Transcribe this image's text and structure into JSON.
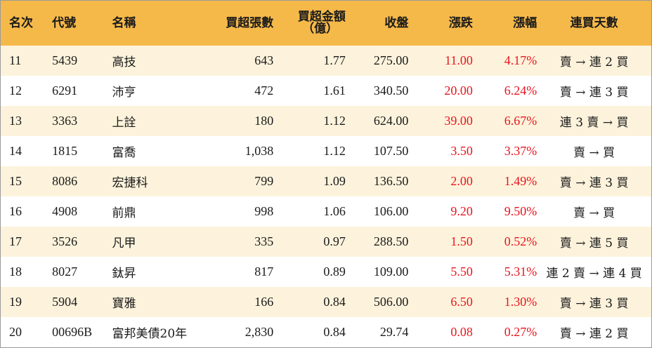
{
  "headers": {
    "rank": "名次",
    "code": "代號",
    "name": "名稱",
    "net_buy_shares": "買超張數",
    "net_buy_amount_line1": "買超金額",
    "net_buy_amount_line2": "（億）",
    "close": "收盤",
    "change": "漲跌",
    "change_pct": "漲幅",
    "consecutive_days": "連買天數"
  },
  "rows": [
    {
      "rank": "11",
      "code": "5439",
      "name": "高技",
      "shares": "643",
      "amount": "1.77",
      "close": "275.00",
      "change": "11.00",
      "pct": "4.17%",
      "days": "賣 → 連 2 買"
    },
    {
      "rank": "12",
      "code": "6291",
      "name": "沛亨",
      "shares": "472",
      "amount": "1.61",
      "close": "340.50",
      "change": "20.00",
      "pct": "6.24%",
      "days": "賣 → 連 3 買"
    },
    {
      "rank": "13",
      "code": "3363",
      "name": "上詮",
      "shares": "180",
      "amount": "1.12",
      "close": "624.00",
      "change": "39.00",
      "pct": "6.67%",
      "days": "連 3 賣 → 買"
    },
    {
      "rank": "14",
      "code": "1815",
      "name": "富喬",
      "shares": "1,038",
      "amount": "1.12",
      "close": "107.50",
      "change": "3.50",
      "pct": "3.37%",
      "days": "賣 → 買"
    },
    {
      "rank": "15",
      "code": "8086",
      "name": "宏捷科",
      "shares": "799",
      "amount": "1.09",
      "close": "136.50",
      "change": "2.00",
      "pct": "1.49%",
      "days": "賣 → 連 3 買"
    },
    {
      "rank": "16",
      "code": "4908",
      "name": "前鼎",
      "shares": "998",
      "amount": "1.06",
      "close": "106.00",
      "change": "9.20",
      "pct": "9.50%",
      "days": "賣 → 買"
    },
    {
      "rank": "17",
      "code": "3526",
      "name": "凡甲",
      "shares": "335",
      "amount": "0.97",
      "close": "288.50",
      "change": "1.50",
      "pct": "0.52%",
      "days": "賣 → 連 5 買"
    },
    {
      "rank": "18",
      "code": "8027",
      "name": "鈦昇",
      "shares": "817",
      "amount": "0.89",
      "close": "109.00",
      "change": "5.50",
      "pct": "5.31%",
      "days": "連 2 賣 → 連 4 買"
    },
    {
      "rank": "19",
      "code": "5904",
      "name": "寶雅",
      "shares": "166",
      "amount": "0.84",
      "close": "506.00",
      "change": "6.50",
      "pct": "1.30%",
      "days": "賣 → 連 3 買"
    },
    {
      "rank": "20",
      "code": "00696B",
      "name": "富邦美債20年",
      "shares": "2,830",
      "amount": "0.84",
      "close": "29.74",
      "change": "0.08",
      "pct": "0.27%",
      "days": "賣 → 連 2 買"
    }
  ],
  "colors": {
    "header_bg": "#f5b94a",
    "odd_row_bg": "#fdf3dc",
    "even_row_bg": "#ffffff",
    "positive": "#e8141e"
  }
}
